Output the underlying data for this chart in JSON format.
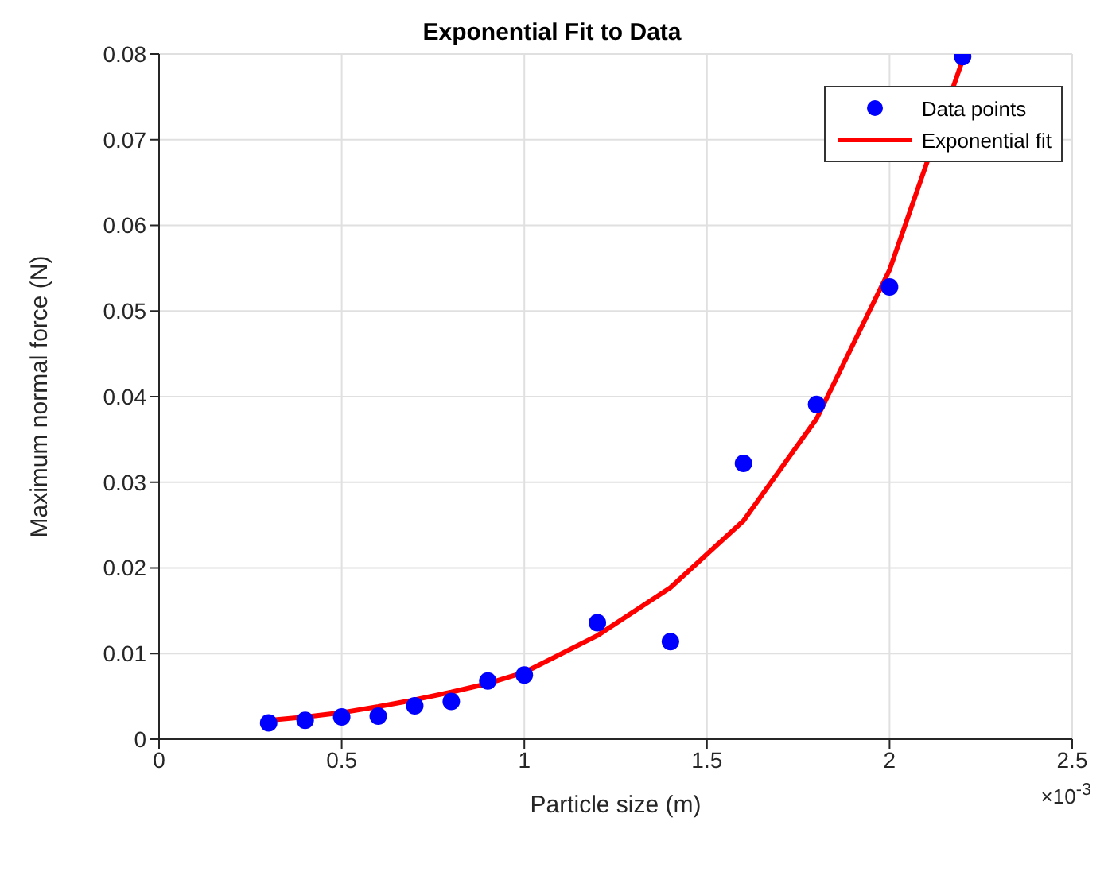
{
  "chart_data": {
    "type": "scatter",
    "title": "Exponential Fit to Data",
    "xlabel": "Particle size (m)",
    "ylabel": "Maximum normal force (N)",
    "xlim": [
      0,
      2.5
    ],
    "xticks": [
      0,
      0.5,
      1,
      1.5,
      2,
      2.5
    ],
    "ylim": [
      0,
      0.08
    ],
    "yticks": [
      0,
      0.01,
      0.02,
      0.03,
      0.04,
      0.05,
      0.06,
      0.07,
      0.08
    ],
    "grid": true,
    "legend": "top right",
    "annotations": [
      "×10$^{-3}$"
    ],
    "series": [
      {
        "name": "Data points",
        "marker": "circle",
        "color": "#0000ff",
        "x": [
          0.3,
          0.4,
          0.5,
          0.6,
          0.7,
          0.8,
          0.9,
          1,
          1.2,
          1.4,
          1.6,
          1.8,
          2,
          2.2
        ],
        "values": [
          0.0019,
          0.0022,
          0.0026,
          0.0027,
          0.0039,
          0.0044,
          0.0068,
          0.0075,
          0.0136,
          0.0114,
          0.0322,
          0.0391,
          0.0528,
          0.0797
        ]
      },
      {
        "name": "Exponential fit",
        "type": "line",
        "marker": "none",
        "line_style": "solid",
        "color": "#ff0000",
        "x": [
          0.3,
          0.4,
          0.5,
          0.6,
          0.7,
          0.8,
          0.9,
          1,
          1.2,
          1.4,
          1.6,
          1.8,
          2,
          2.2
        ],
        "values": [
          0.0022,
          0.0026,
          0.0031,
          0.0038,
          0.0046,
          0.0055,
          0.0065,
          0.0078,
          0.0121,
          0.0177,
          0.0255,
          0.0374,
          0.0548,
          0.0793
        ]
      }
    ]
  }
}
